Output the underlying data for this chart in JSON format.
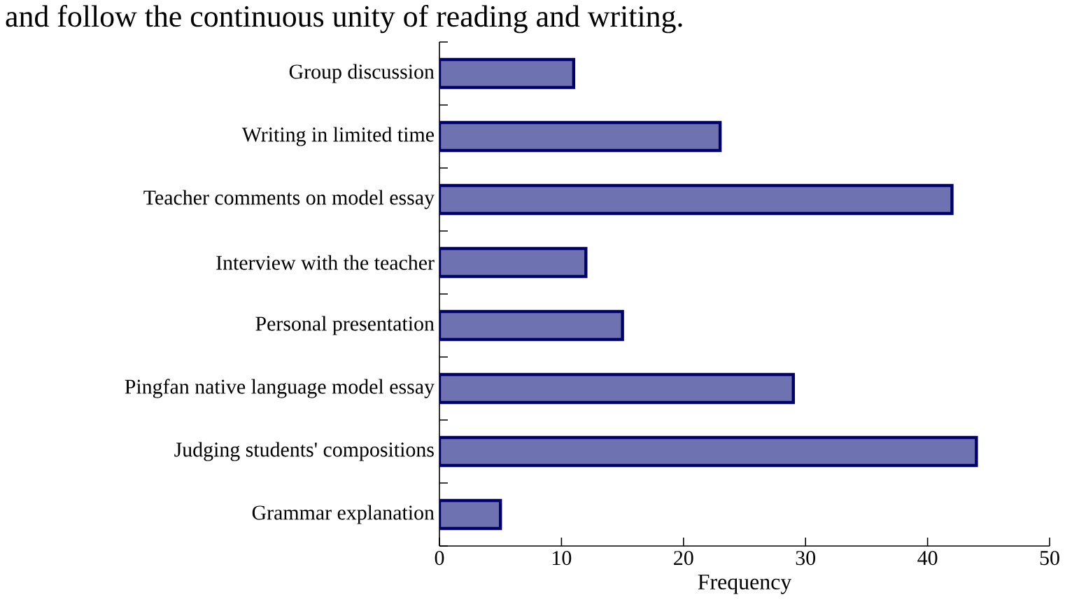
{
  "chart_data": {
    "type": "bar",
    "orientation": "horizontal",
    "xlabel": "Frequency",
    "annotations": [
      "and follow the continuous unity of reading and writing."
    ],
    "categories": [
      "Group discussion",
      "Writing in limited time",
      "Teacher comments on model essay",
      "Interview with the teacher",
      "Personal presentation",
      "Pingfan native language model essay",
      "Judging students' compositions",
      "Grammar explanation"
    ],
    "values": [
      11,
      23,
      42,
      12,
      15,
      29,
      44,
      5
    ],
    "color": "#6e72b0",
    "xlim": [
      0,
      50
    ],
    "xticks": [
      0,
      10,
      20,
      30,
      40,
      50
    ]
  }
}
